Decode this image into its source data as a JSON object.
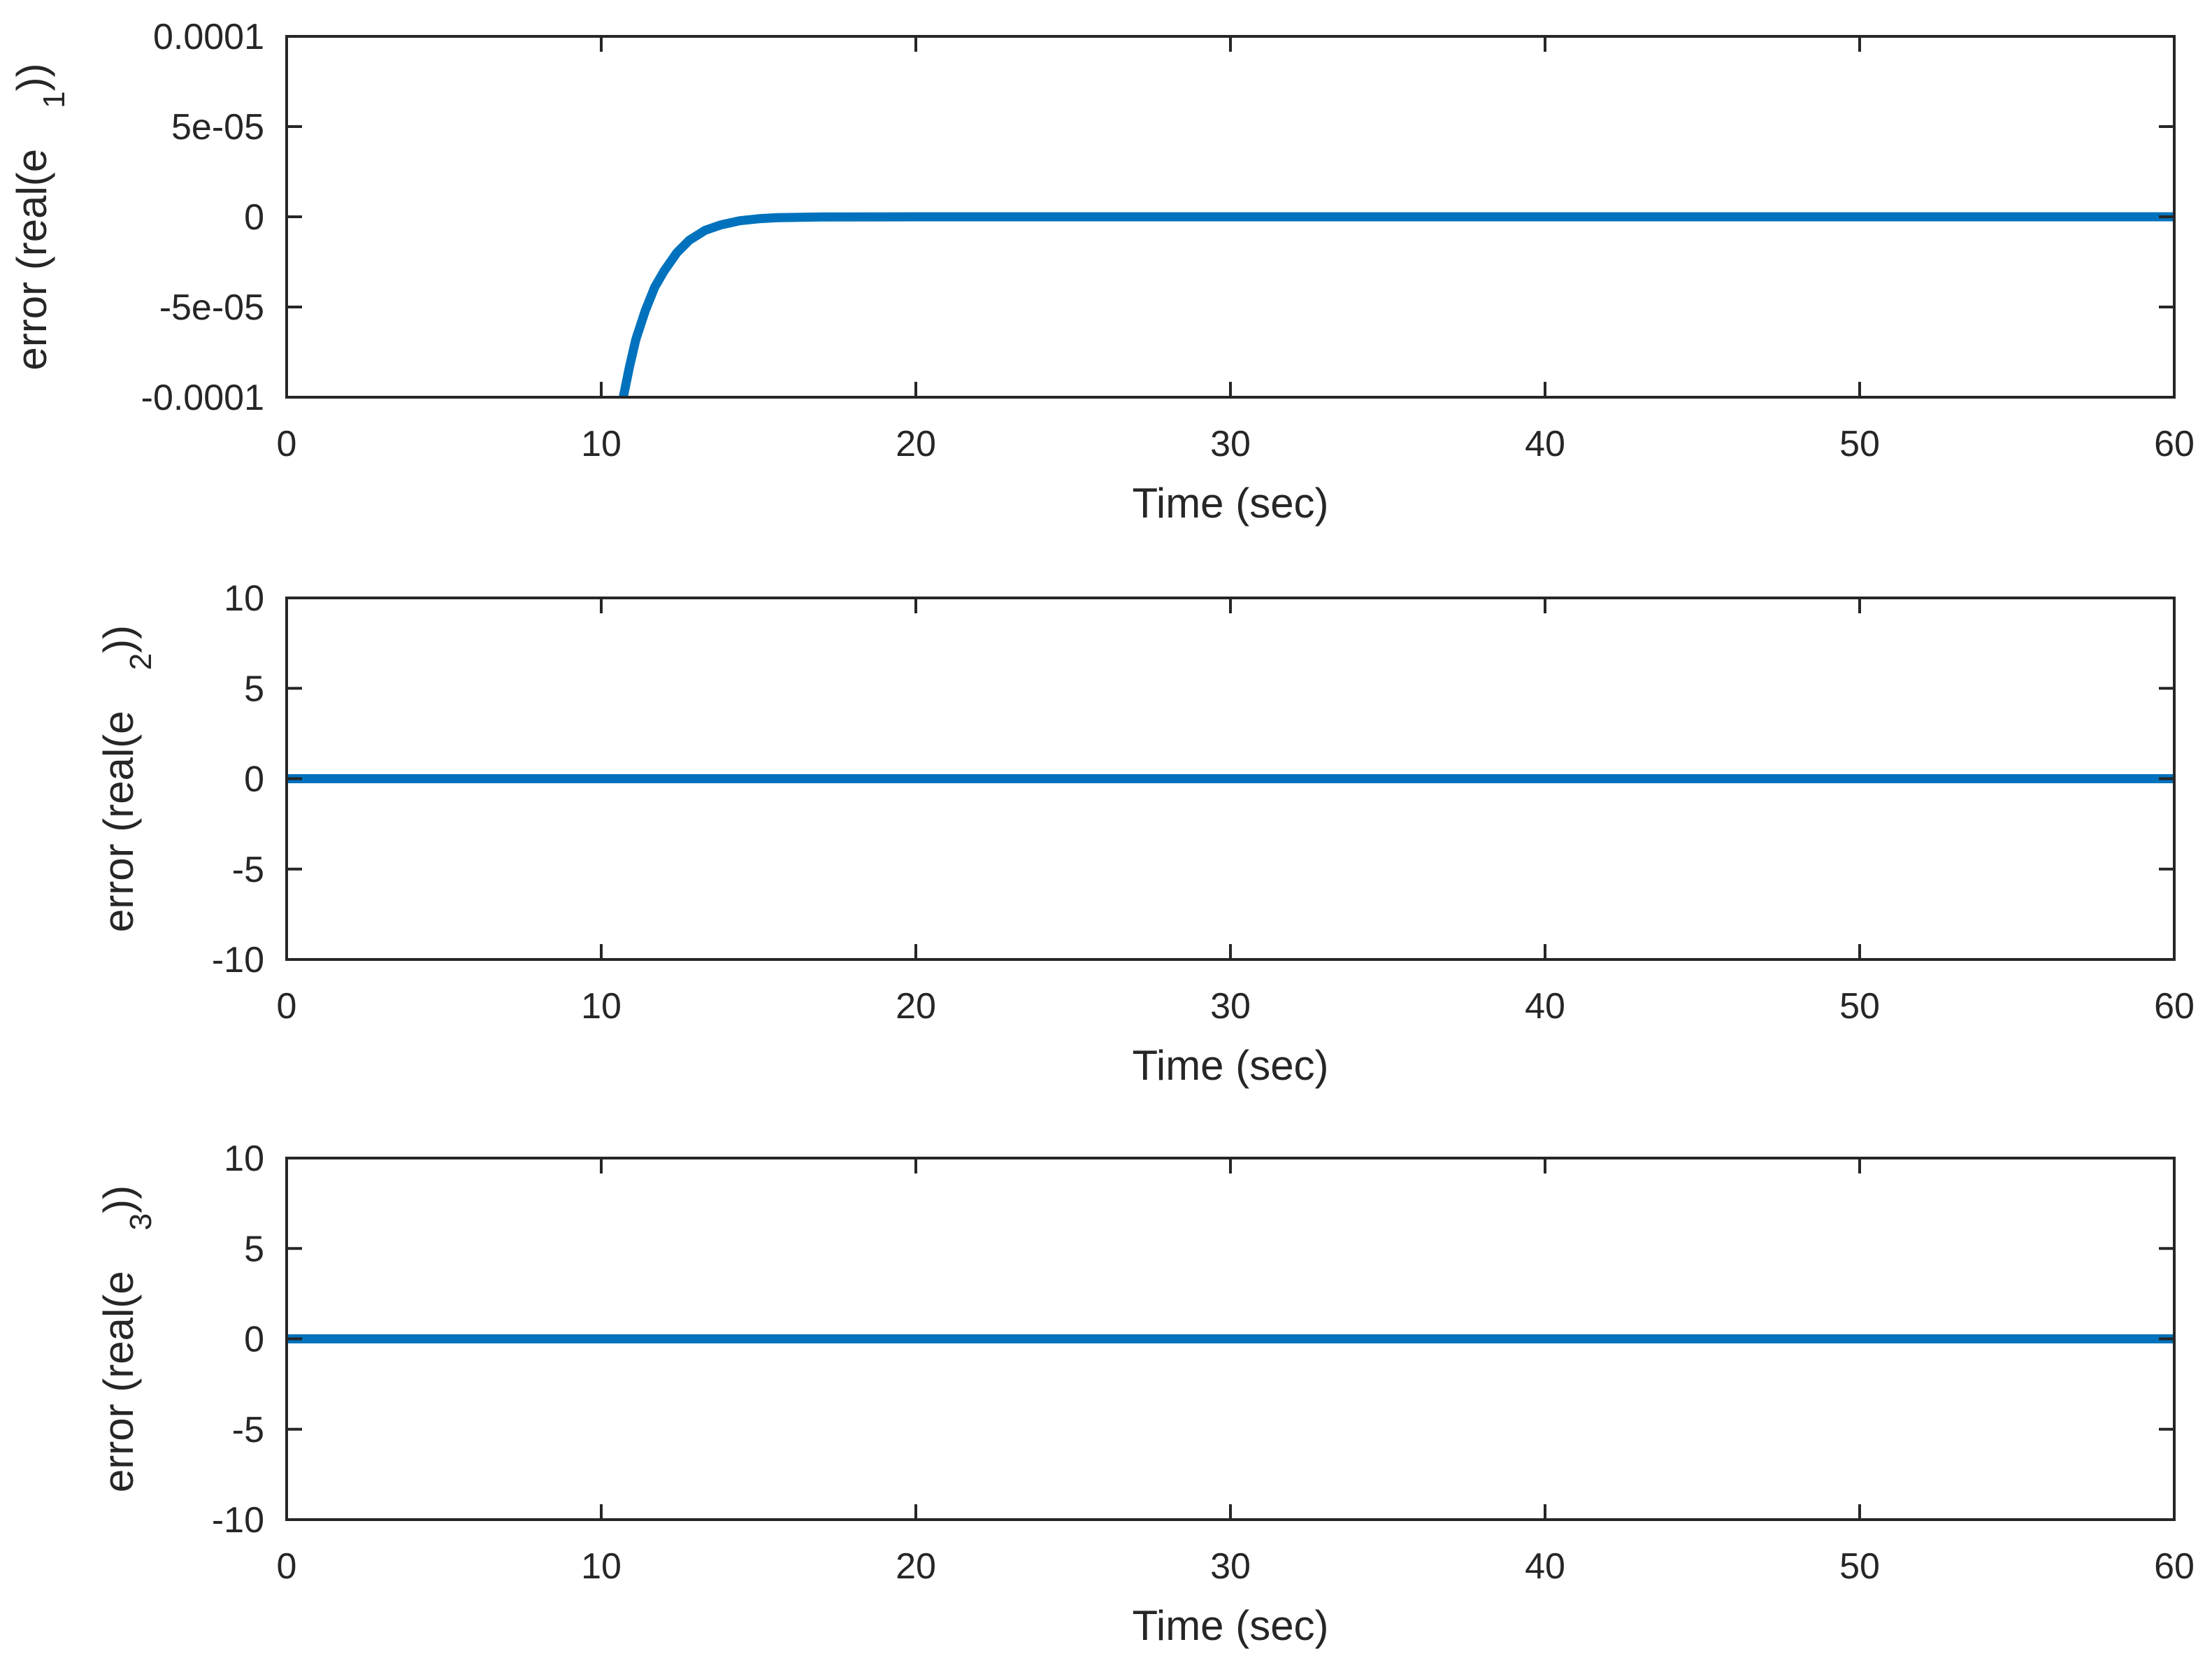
{
  "chart_data": [
    {
      "type": "line",
      "xlabel": "Time (sec)",
      "ylabel": {
        "prefix": "error (real(e",
        "subscript": "1",
        "suffix": "))"
      },
      "xlim": [
        0,
        60
      ],
      "ylim": [
        -0.0001,
        0.0001
      ],
      "xticks": [
        0,
        10,
        20,
        30,
        40,
        50,
        60
      ],
      "xtick_labels": [
        "0",
        "10",
        "20",
        "30",
        "40",
        "50",
        "60"
      ],
      "yticks": [
        -0.0001,
        -5e-05,
        0,
        5e-05,
        0.0001
      ],
      "ytick_labels": [
        "-0.0001",
        "-5e-05",
        "0",
        "5e-05",
        "0.0001"
      ],
      "grid": false,
      "series": [
        {
          "color": "#0072bd",
          "x": [
            10.7,
            10.9,
            11.1,
            11.4,
            11.7,
            12.0,
            12.4,
            12.8,
            13.3,
            13.8,
            14.4,
            15.0,
            15.6,
            17,
            20,
            30,
            40,
            50,
            60
          ],
          "y": [
            -0.0001,
            -8.3e-05,
            -6.8e-05,
            -5.2e-05,
            -3.9e-05,
            -3e-05,
            -2e-05,
            -1.3e-05,
            -7.5e-06,
            -4.5e-06,
            -2.2e-06,
            -1.1e-06,
            -5e-07,
            -1e-07,
            0,
            0,
            0,
            0,
            0
          ]
        }
      ]
    },
    {
      "type": "line",
      "xlabel": "Time (sec)",
      "ylabel": {
        "prefix": "error (real(e",
        "subscript": "2",
        "suffix": "))"
      },
      "xlim": [
        0,
        60
      ],
      "ylim": [
        -10,
        10
      ],
      "xticks": [
        0,
        10,
        20,
        30,
        40,
        50,
        60
      ],
      "xtick_labels": [
        "0",
        "10",
        "20",
        "30",
        "40",
        "50",
        "60"
      ],
      "yticks": [
        -10,
        -5,
        0,
        5,
        10
      ],
      "ytick_labels": [
        "-10",
        "-5",
        "0",
        "5",
        "10"
      ],
      "grid": false,
      "series": [
        {
          "color": "#0072bd",
          "x": [
            0,
            60
          ],
          "y": [
            0,
            0
          ]
        }
      ]
    },
    {
      "type": "line",
      "xlabel": "Time (sec)",
      "ylabel": {
        "prefix": "error (real(e",
        "subscript": "3",
        "suffix": "))"
      },
      "xlim": [
        0,
        60
      ],
      "ylim": [
        -10,
        10
      ],
      "xticks": [
        0,
        10,
        20,
        30,
        40,
        50,
        60
      ],
      "xtick_labels": [
        "0",
        "10",
        "20",
        "30",
        "40",
        "50",
        "60"
      ],
      "yticks": [
        -10,
        -5,
        0,
        5,
        10
      ],
      "ytick_labels": [
        "-10",
        "-5",
        "0",
        "5",
        "10"
      ],
      "grid": false,
      "series": [
        {
          "color": "#0072bd",
          "x": [
            0,
            60
          ],
          "y": [
            0,
            0
          ]
        }
      ]
    }
  ]
}
